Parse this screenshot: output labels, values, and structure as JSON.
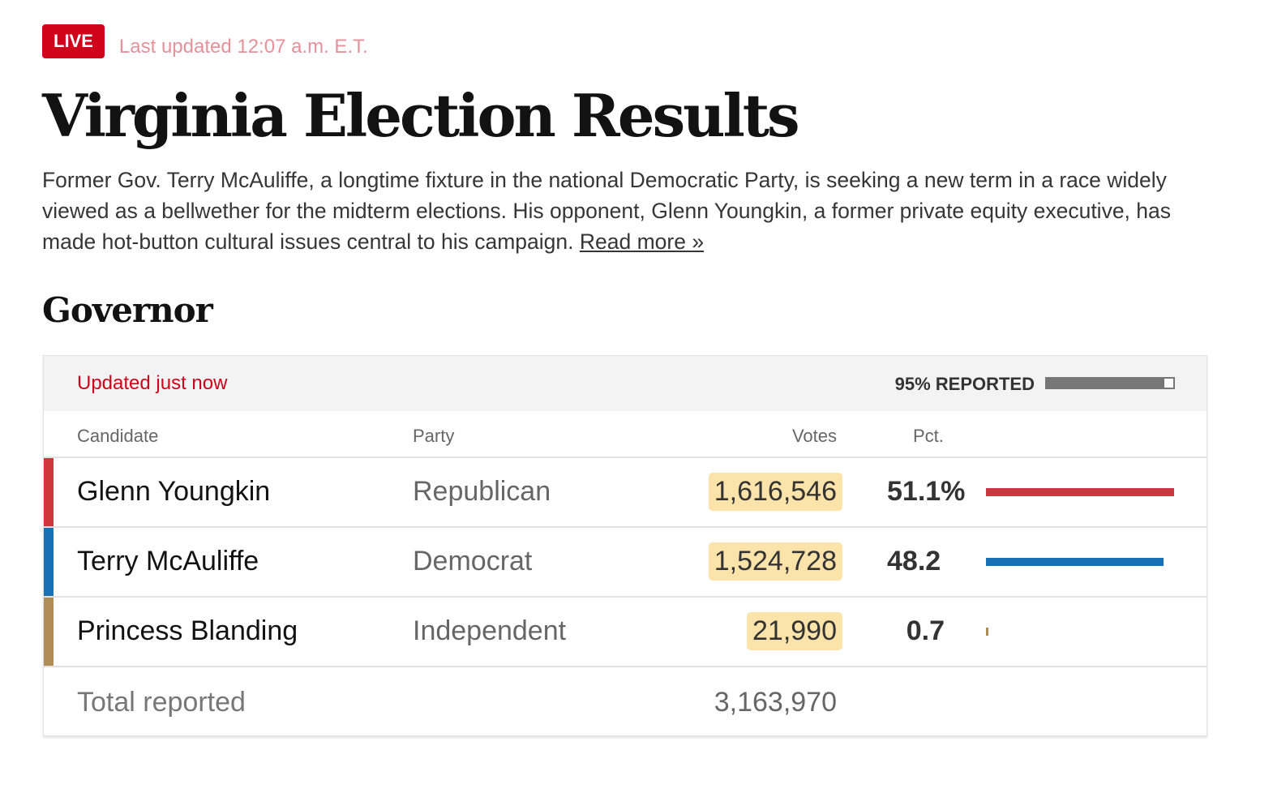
{
  "live_badge": "LIVE",
  "last_updated": "Last updated 12:07 a.m. E.T.",
  "title": "Virginia Election Results",
  "description": "Former Gov. Terry McAuliffe, a longtime fixture in the national Democratic Party, is seeking a new term in a race widely viewed as a bellwether for the midterm elections. His opponent, Glenn Youngkin, a former private equity executive, has made hot-button cultural issues central to his campaign.",
  "read_more": "Read more »",
  "section": "Governor",
  "table": {
    "updated": "Updated just now",
    "reported_label": "95% REPORTED",
    "reported_pct": 95,
    "headers": {
      "candidate": "Candidate",
      "party": "Party",
      "votes": "Votes",
      "pct": "Pct."
    },
    "rows": [
      {
        "name": "Glenn Youngkin",
        "party": "Republican",
        "votes": "1,616,546",
        "pct": "51.1%",
        "pct_value": 51.1,
        "color": "#d0343d"
      },
      {
        "name": "Terry McAuliffe",
        "party": "Democrat",
        "votes": "1,524,728",
        "pct": "48.2",
        "pct_value": 48.2,
        "color": "#1a6fb5"
      },
      {
        "name": "Princess Blanding",
        "party": "Independent",
        "votes": "21,990",
        "pct": "0.7",
        "pct_value": 0.7,
        "color": "#b08d57"
      }
    ],
    "total_label": "Total reported",
    "total_votes": "3,163,970"
  }
}
